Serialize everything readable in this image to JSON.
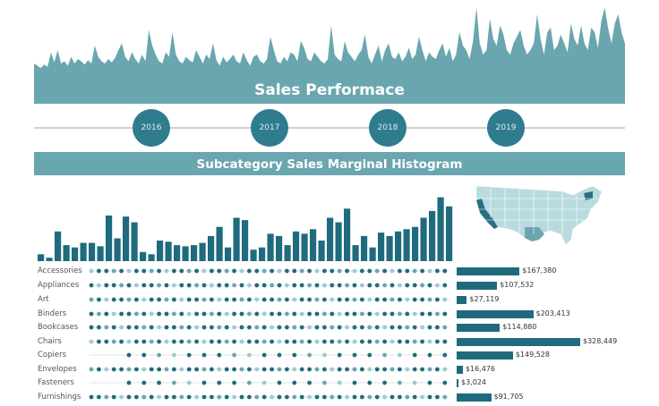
{
  "header": {
    "title": "Sales Performace"
  },
  "years": [
    "2016",
    "2017",
    "2018",
    "2019"
  ],
  "section": {
    "title": "Subcategory Sales Marginal Histogram"
  },
  "colors": {
    "teal": "#6aa6b0",
    "dark": "#1f6b7d",
    "light": "#9ccbd3"
  },
  "chart_data": [
    {
      "type": "area",
      "values": [
        12,
        10,
        8,
        11,
        9,
        22,
        13,
        24,
        12,
        14,
        10,
        18,
        12,
        16,
        14,
        11,
        15,
        12,
        28,
        18,
        14,
        12,
        16,
        13,
        17,
        24,
        30,
        18,
        14,
        22,
        16,
        12,
        20,
        14,
        42,
        28,
        20,
        14,
        12,
        22,
        18,
        40,
        20,
        14,
        12,
        18,
        15,
        13,
        24,
        18,
        12,
        20,
        16,
        30,
        15,
        10,
        18,
        13,
        16,
        20,
        14,
        12,
        22,
        15,
        10,
        18,
        20,
        14,
        12,
        16,
        36,
        24,
        14,
        12,
        18,
        14,
        22,
        20,
        14,
        32,
        26,
        16,
        14,
        22,
        18,
        14,
        12,
        16,
        46,
        20,
        16,
        14,
        32,
        22,
        18,
        14,
        20,
        24,
        38,
        18,
        12,
        20,
        28,
        14,
        24,
        30,
        18,
        16,
        22,
        14,
        18,
        26,
        16,
        20,
        36,
        24,
        14,
        22,
        18,
        16,
        24,
        30,
        18,
        26,
        14,
        20,
        40,
        28,
        24,
        16,
        32,
        62,
        30,
        20,
        24,
        52,
        34,
        28,
        46,
        38,
        24,
        20,
        30,
        36,
        42,
        28,
        20,
        24,
        30,
        56,
        34,
        20,
        40,
        44,
        24,
        28,
        38,
        30,
        22,
        48,
        34,
        28,
        46,
        30,
        24,
        44,
        40,
        26,
        50,
        62,
        44,
        30,
        48,
        56,
        40,
        30
      ]
    },
    {
      "type": "bar",
      "values": [
        6,
        3,
        26,
        14,
        12,
        16,
        16,
        13,
        40,
        20,
        39,
        34,
        8,
        6,
        18,
        17,
        14,
        13,
        14,
        16,
        22,
        30,
        12,
        38,
        36,
        10,
        12,
        24,
        22,
        14,
        26,
        24,
        28,
        18,
        38,
        34,
        46,
        14,
        22,
        12,
        25,
        22,
        26,
        28,
        30,
        38,
        44,
        56,
        48
      ]
    },
    {
      "type": "bar",
      "categories": [
        "Accessories",
        "Appliances",
        "Art",
        "Binders",
        "Bookcases",
        "Chairs",
        "Copiers",
        "Envelopes",
        "Fasteners",
        "Furnishings"
      ],
      "values": [
        167380,
        107532,
        27119,
        203413,
        114880,
        328449,
        149528,
        16476,
        3024,
        91705
      ],
      "labels": [
        "$167,380",
        "$107,532",
        "$27,119",
        "$203,413",
        "$114,880",
        "$328,449",
        "$149,528",
        "$16,476",
        "$3,024",
        "$91,705"
      ]
    }
  ]
}
